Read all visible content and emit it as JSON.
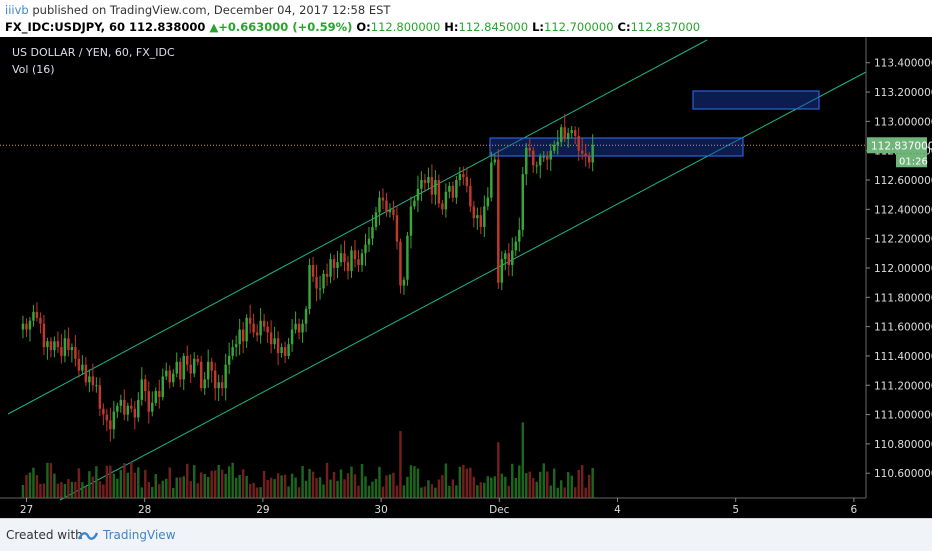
{
  "header": {
    "user": "iiivb",
    "published": " published on TradingView.com, December 04, 2017 12:58 EST",
    "symbol_tf": "FX_IDC:USDJPY, 60",
    "last": "112.838000",
    "change": "+0.663000 (+0.59%)",
    "open_label": "O:",
    "open": "112.800000",
    "high_label": "H:",
    "high": "112.845000",
    "low_label": "L:",
    "low": "112.700000",
    "close_label": "C:",
    "close": "112.837000"
  },
  "footer": {
    "created_with": "Created with",
    "brand": "TradingView"
  },
  "chart_data": {
    "type": "candlestick",
    "title": "US DOLLAR / YEN, 60, FX_IDC",
    "volume_label": "Vol (16)",
    "ylim": [
      110.42,
      113.48
    ],
    "y_ticks": [
      "113.400000",
      "113.200000",
      "113.000000",
      "112.800000",
      "112.600000",
      "112.400000",
      "112.200000",
      "112.000000",
      "111.800000",
      "111.600000",
      "111.400000",
      "111.200000",
      "111.000000",
      "110.800000",
      "110.600000"
    ],
    "x_ticks": [
      {
        "label": "27",
        "day": 0
      },
      {
        "label": "28",
        "day": 1
      },
      {
        "label": "29",
        "day": 2
      },
      {
        "label": "30",
        "day": 3
      },
      {
        "label": "Dec",
        "day": 4
      },
      {
        "label": "4",
        "day": 5
      },
      {
        "label": "5",
        "day": 6
      },
      {
        "label": "6",
        "day": 7
      }
    ],
    "last_price_label": "112.837000",
    "countdown": "01:26",
    "candle_day_span": [
      -0.03,
      4.79
    ],
    "closes": [
      111.62,
      111.58,
      111.64,
      111.7,
      111.66,
      111.62,
      111.46,
      111.5,
      111.44,
      111.5,
      111.46,
      111.4,
      111.52,
      111.44,
      111.46,
      111.38,
      111.3,
      111.34,
      111.22,
      111.26,
      111.2,
      111.2,
      111.04,
      111.0,
      110.96,
      110.9,
      111.02,
      111.06,
      111.1,
      111.0,
      111.06,
      111.04,
      110.98,
      111.1,
      111.24,
      111.16,
      111.02,
      111.08,
      111.16,
      111.12,
      111.26,
      111.3,
      111.22,
      111.28,
      111.36,
      111.24,
      111.4,
      111.34,
      111.28,
      111.38,
      111.36,
      111.18,
      111.24,
      111.36,
      111.3,
      111.18,
      111.22,
      111.18,
      111.34,
      111.4,
      111.46,
      111.48,
      111.58,
      111.5,
      111.66,
      111.62,
      111.56,
      111.54,
      111.64,
      111.6,
      111.56,
      111.48,
      111.52,
      111.42,
      111.46,
      111.4,
      111.48,
      111.58,
      111.62,
      111.56,
      111.62,
      111.72,
      112.02,
      111.94,
      111.86,
      111.86,
      111.96,
      111.94,
      112.06,
      112.0,
      112.04,
      112.1,
      112.04,
      111.98,
      112.12,
      112.06,
      112.02,
      112.1,
      112.16,
      112.2,
      112.28,
      112.38,
      112.48,
      112.46,
      112.38,
      112.4,
      112.36,
      112.18,
      111.88,
      111.92,
      112.22,
      112.42,
      112.46,
      112.54,
      112.6,
      112.58,
      112.62,
      112.5,
      112.6,
      112.44,
      112.4,
      112.52,
      112.56,
      112.48,
      112.6,
      112.64,
      112.62,
      112.56,
      112.42,
      112.34,
      112.36,
      112.28,
      112.42,
      112.48,
      112.72,
      112.74,
      111.9,
      112.06,
      112.1,
      112.02,
      112.12,
      112.18,
      112.26,
      112.64,
      112.82,
      112.8,
      112.7,
      112.7,
      112.76,
      112.76,
      112.74,
      112.8,
      112.84,
      112.86,
      112.96,
      112.88,
      112.92,
      112.94,
      112.9,
      112.8,
      112.78,
      112.76,
      112.72,
      112.84
    ]
  }
}
